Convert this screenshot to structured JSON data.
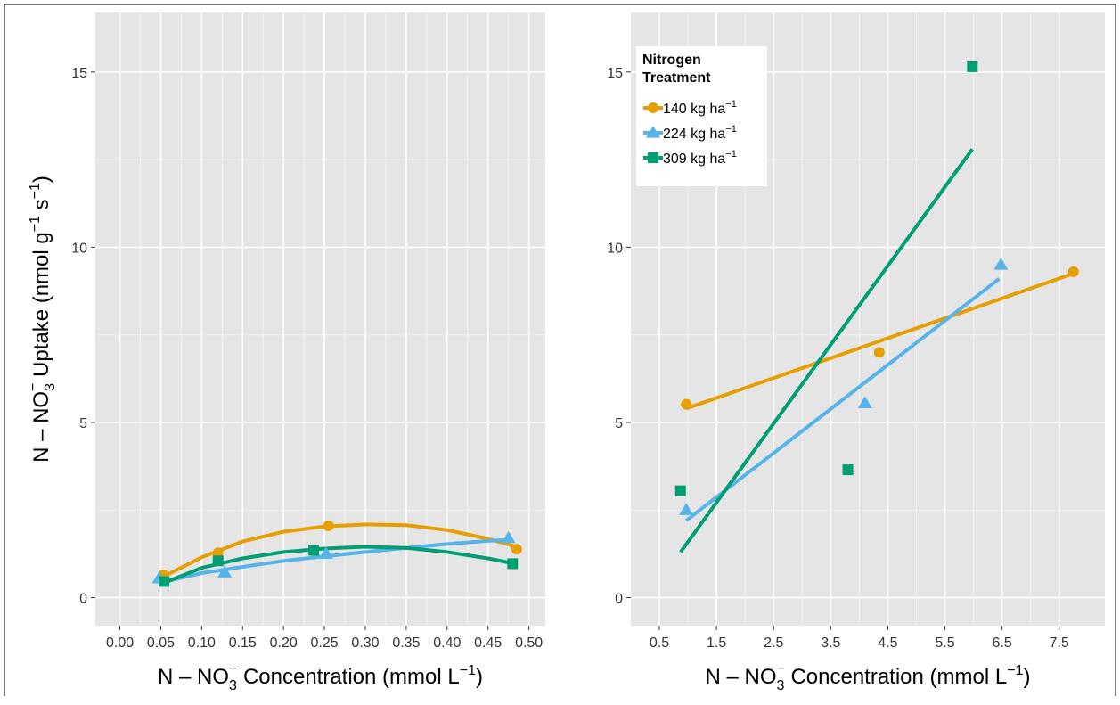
{
  "colors": {
    "140": "#E69F00",
    "224": "#56B4E9",
    "309": "#009E73",
    "panel_bg": "#E5E5E5",
    "grid": "#FFFFFF"
  },
  "chart_data": [
    {
      "type": "scatter",
      "panel": "left",
      "xlabel": "N – NO3 Concentration (mmol L−1)",
      "ylabel": "N – NO3 Uptake (nmol g−1 s−1)",
      "xlim": [
        -0.03,
        0.52
      ],
      "ylim": [
        -0.8,
        16.7
      ],
      "x_ticks": [
        "0.00",
        "0.05",
        "0.10",
        "0.15",
        "0.20",
        "0.25",
        "0.30",
        "0.35",
        "0.40",
        "0.45",
        "0.50"
      ],
      "y_ticks": [
        "0",
        "5",
        "10",
        "15"
      ],
      "grid": true,
      "legend": "none",
      "series": [
        {
          "name": "140 kg ha−1",
          "marker": "circle",
          "points": [
            [
              0.053,
              0.65
            ],
            [
              0.12,
              1.28
            ],
            [
              0.255,
              2.05
            ],
            [
              0.485,
              1.38
            ]
          ],
          "fit": [
            [
              0.053,
              0.6
            ],
            [
              0.1,
              1.15
            ],
            [
              0.15,
              1.6
            ],
            [
              0.2,
              1.88
            ],
            [
              0.25,
              2.03
            ],
            [
              0.3,
              2.09
            ],
            [
              0.35,
              2.07
            ],
            [
              0.4,
              1.93
            ],
            [
              0.45,
              1.68
            ],
            [
              0.485,
              1.45
            ]
          ]
        },
        {
          "name": "224 kg ha−1",
          "marker": "triangle",
          "points": [
            [
              0.048,
              0.55
            ],
            [
              0.128,
              0.72
            ],
            [
              0.252,
              1.25
            ],
            [
              0.475,
              1.7
            ]
          ],
          "fit": [
            [
              0.048,
              0.42
            ],
            [
              0.1,
              0.7
            ],
            [
              0.15,
              0.88
            ],
            [
              0.2,
              1.05
            ],
            [
              0.25,
              1.18
            ],
            [
              0.3,
              1.3
            ],
            [
              0.35,
              1.42
            ],
            [
              0.4,
              1.53
            ],
            [
              0.45,
              1.62
            ],
            [
              0.475,
              1.65
            ]
          ]
        },
        {
          "name": "309 kg ha−1",
          "marker": "square",
          "points": [
            [
              0.054,
              0.46
            ],
            [
              0.12,
              1.05
            ],
            [
              0.237,
              1.35
            ],
            [
              0.48,
              0.97
            ]
          ],
          "fit": [
            [
              0.054,
              0.42
            ],
            [
              0.1,
              0.85
            ],
            [
              0.15,
              1.12
            ],
            [
              0.2,
              1.3
            ],
            [
              0.25,
              1.4
            ],
            [
              0.3,
              1.45
            ],
            [
              0.35,
              1.42
            ],
            [
              0.4,
              1.3
            ],
            [
              0.45,
              1.12
            ],
            [
              0.48,
              0.98
            ]
          ]
        }
      ]
    },
    {
      "type": "scatter",
      "panel": "right",
      "xlabel": "N – NO3 Concentration (mmol L−1)",
      "ylabel": "",
      "xlim": [
        0.0,
        8.3
      ],
      "ylim": [
        -0.8,
        16.7
      ],
      "x_ticks": [
        "0.5",
        "1.5",
        "2.5",
        "3.5",
        "4.5",
        "5.5",
        "6.5",
        "7.5"
      ],
      "y_ticks": [
        "0",
        "5",
        "10",
        "15"
      ],
      "grid": true,
      "legend": "top-left",
      "legend_title": [
        "Nitrogen",
        "Treatment"
      ],
      "series": [
        {
          "name": "140 kg ha−1",
          "marker": "circle",
          "points": [
            [
              0.97,
              5.52
            ],
            [
              4.35,
              7.0
            ],
            [
              7.75,
              9.3
            ]
          ],
          "fit": [
            [
              0.97,
              5.4
            ],
            [
              7.75,
              9.25
            ]
          ]
        },
        {
          "name": "224 kg ha−1",
          "marker": "triangle",
          "points": [
            [
              0.97,
              2.5
            ],
            [
              4.1,
              5.55
            ],
            [
              6.48,
              9.5
            ]
          ],
          "fit": [
            [
              0.97,
              2.2
            ],
            [
              6.45,
              9.1
            ]
          ]
        },
        {
          "name": "309 kg ha−1",
          "marker": "square",
          "points": [
            [
              0.87,
              3.05
            ],
            [
              3.8,
              3.65
            ],
            [
              5.98,
              15.15
            ]
          ],
          "fit": [
            [
              0.87,
              1.3
            ],
            [
              5.98,
              12.8
            ]
          ]
        }
      ]
    }
  ],
  "text": {
    "axis_n": "N – NO",
    "axis_sub3": "3",
    "axis_supminus": "−",
    "axis_conc": " Concentration (mmol L",
    "axis_uptake": " Uptake (nmol g",
    "axis_s": " s",
    "sup_minus1": "−1",
    "close_paren": ")",
    "legend_unit_base": " kg ha",
    "legend_labels": [
      "140",
      "224",
      "309"
    ]
  }
}
